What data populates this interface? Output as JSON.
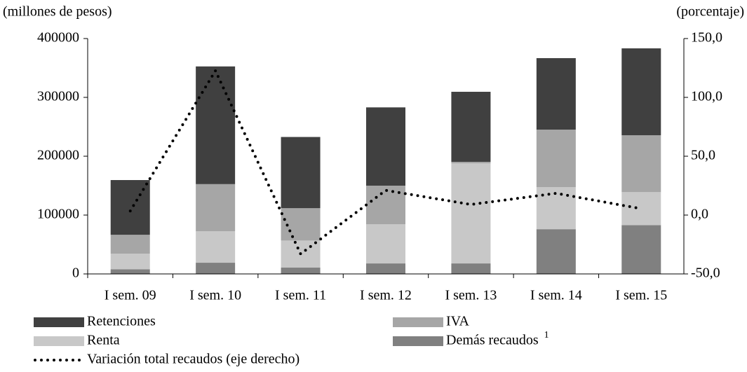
{
  "chart_data": {
    "type": "bar",
    "stacked": true,
    "ylabel": "(millones de pesos)",
    "y2label": "(porcentaje)",
    "categories": [
      "I sem. 09",
      "I sem. 10",
      "I sem. 11",
      "I sem. 12",
      "I sem. 13",
      "I sem. 14",
      "I sem. 15"
    ],
    "ylim": [
      0,
      400000
    ],
    "yticks": [
      0,
      100000,
      200000,
      300000,
      400000
    ],
    "y2lim": [
      -50,
      150
    ],
    "y2ticks": [
      {
        "value": -50,
        "label": "-50,0"
      },
      {
        "value": 0,
        "label": "0,0"
      },
      {
        "value": 50,
        "label": "50,0"
      },
      {
        "value": 100,
        "label": "100,0"
      },
      {
        "value": 150,
        "label": "150,0"
      }
    ],
    "series": [
      {
        "name": "Demás recaudos",
        "note": "1",
        "color": "#808080",
        "values": [
          8000,
          19000,
          10700,
          17800,
          17800,
          76000,
          83000
        ]
      },
      {
        "name": "Renta",
        "color": "#c8c8c8",
        "values": [
          26500,
          53600,
          46000,
          66700,
          170000,
          71600,
          56000
        ]
      },
      {
        "name": "IVA",
        "color": "#a6a6a6",
        "values": [
          32000,
          80000,
          55000,
          65500,
          2700,
          97600,
          96700
        ]
      },
      {
        "name": "Retenciones",
        "color": "#404040",
        "values": [
          93000,
          200000,
          121000,
          133000,
          119000,
          121500,
          147600
        ]
      },
      {
        "name": "Variación total recaudos (eje derecho)",
        "type": "line",
        "axis": "y2",
        "color": "#000000",
        "values": [
          3.5,
          122.6,
          -33,
          21,
          9,
          18.5,
          5.4
        ]
      }
    ]
  }
}
